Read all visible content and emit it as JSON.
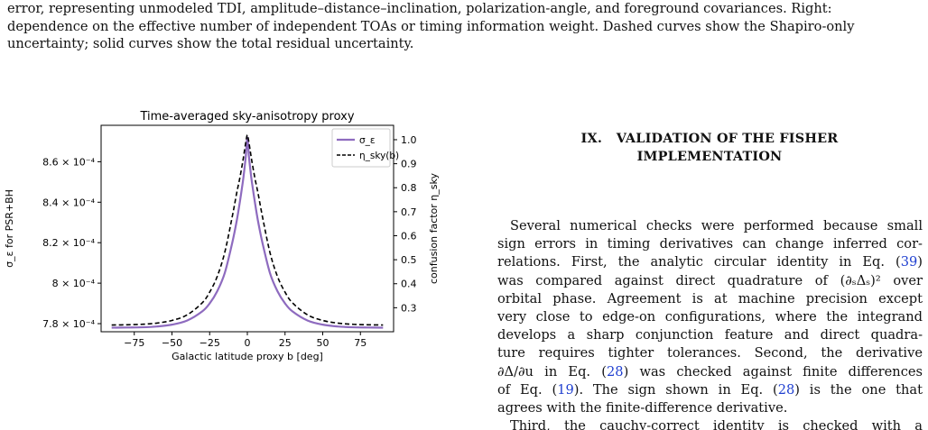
{
  "caption": {
    "lines": [
      "error, representing unmodeled TDI, amplitude–distance–inclination, polarization-angle, and foreground covariances. Right:",
      "dependence on the effective number of independent TOAs or timing information weight. Dashed curves show the Shapiro-only",
      "uncertainty; solid curves show the total residual uncertainty."
    ]
  },
  "section": {
    "number": "IX.",
    "title_line1": "VALIDATION OF THE FISHER",
    "title_line2": "IMPLEMENTATION"
  },
  "body": {
    "lines": [
      [
        "Several numerical checks were performed because small"
      ],
      [
        "sign errors in timing derivatives can change inferred cor-"
      ],
      [
        "relations. First, the analytic circular identity in Eq. (",
        "39",
        ")"
      ],
      [
        "was compared against direct quadrature of (∂ₛΔₛ)² over"
      ],
      [
        "orbital phase. Agreement is at machine precision except"
      ],
      [
        "very close to edge-on configurations, where the integrand"
      ],
      [
        "develops a sharp conjunction feature and direct quadra-"
      ],
      [
        "ture requires tighter tolerances. Second, the derivative"
      ],
      [
        "∂Δ/∂u in Eq. (",
        "28",
        ") was checked against finite differences"
      ],
      [
        "of Eq. (",
        "19",
        "). The sign shown in Eq. (",
        "28",
        ") is the one that"
      ],
      [
        "agrees with the finite-difference derivative."
      ],
      [
        "Third, the cauchy-correct identity is checked with a"
      ]
    ]
  },
  "chart_data": {
    "type": "line",
    "title": "Time-averaged sky-anisotropy proxy",
    "xlabel": "Galactic latitude proxy b [deg]",
    "ylabel_left": "σ_ε for PSR+BH",
    "ylabel_right": "confusion factor η_sky",
    "x_ticks": [
      -75,
      -50,
      -25,
      0,
      25,
      50,
      75
    ],
    "x_tick_labels": [
      "−75",
      "−50",
      "−25",
      "0",
      "25",
      "50",
      "75"
    ],
    "xlim": [
      -97,
      97
    ],
    "left_ylim": [
      0.000776,
      0.000878
    ],
    "left_ticks": [
      0.00078,
      0.0008,
      0.00082,
      0.00084,
      0.00086
    ],
    "left_tick_labels": [
      "7.8 × 10⁻⁴",
      "8 × 10⁻⁴",
      "8.2 × 10⁻⁴",
      "8.4 × 10⁻⁴",
      "8.6 × 10⁻⁴"
    ],
    "right_ylim": [
      0.2,
      1.06
    ],
    "right_ticks": [
      0.3,
      0.4,
      0.5,
      0.6,
      0.7,
      0.8,
      0.9,
      1.0
    ],
    "right_tick_labels": [
      "0.3",
      "0.4",
      "0.5",
      "0.6",
      "0.7",
      "0.8",
      "0.9",
      "1.0"
    ],
    "legend_position": "top-right",
    "series": [
      {
        "name": "σ_ε",
        "axis": "left",
        "style": "solid",
        "color": "#8e6bbf",
        "x": [
          -90,
          -80,
          -70,
          -60,
          -50,
          -40,
          -30,
          -25,
          -20,
          -15,
          -10,
          -7,
          -5,
          -3,
          -2,
          -1,
          0,
          1,
          2,
          3,
          5,
          7,
          10,
          15,
          20,
          25,
          30,
          40,
          50,
          60,
          70,
          80,
          90
        ],
        "y": [
          0.000778,
          0.0007781,
          0.0007782,
          0.0007786,
          0.0007795,
          0.0007815,
          0.000786,
          0.00079,
          0.000796,
          0.000805,
          0.00082,
          0.000831,
          0.00084,
          0.00085,
          0.000856,
          0.000863,
          0.000872,
          0.000863,
          0.000856,
          0.00085,
          0.00084,
          0.000831,
          0.00082,
          0.000805,
          0.000796,
          0.00079,
          0.000786,
          0.0007815,
          0.0007795,
          0.0007786,
          0.0007782,
          0.0007781,
          0.000778
        ]
      },
      {
        "name": "η_sky(b)",
        "axis": "right",
        "style": "dashed",
        "color": "#000000",
        "x": [
          -90,
          -80,
          -70,
          -60,
          -50,
          -40,
          -30,
          -25,
          -20,
          -15,
          -10,
          -7,
          -5,
          -3,
          -2,
          -1,
          0,
          1,
          2,
          3,
          5,
          7,
          10,
          15,
          20,
          25,
          30,
          40,
          50,
          60,
          70,
          80,
          90
        ],
        "y": [
          0.228,
          0.229,
          0.231,
          0.236,
          0.247,
          0.27,
          0.32,
          0.365,
          0.43,
          0.53,
          0.68,
          0.78,
          0.84,
          0.91,
          0.95,
          0.99,
          1.02,
          0.99,
          0.95,
          0.91,
          0.84,
          0.78,
          0.68,
          0.53,
          0.43,
          0.365,
          0.32,
          0.27,
          0.247,
          0.236,
          0.231,
          0.229,
          0.228
        ]
      }
    ]
  }
}
